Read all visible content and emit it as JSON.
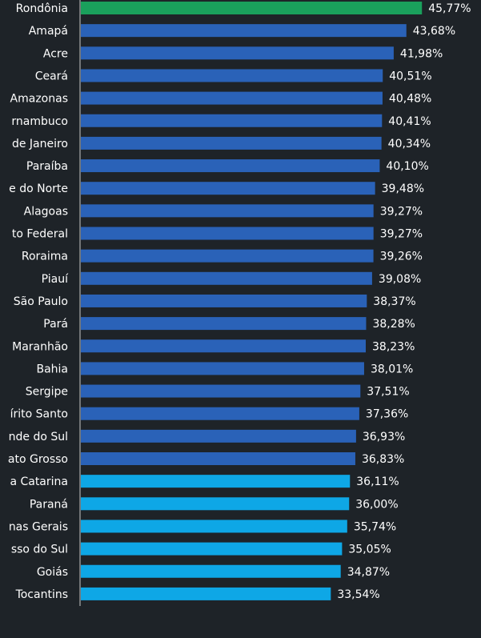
{
  "chart_data": {
    "type": "barh",
    "categories": [
      "Rondônia",
      "Amapá",
      "Acre",
      "Ceará",
      "Amazonas",
      "rnambuco",
      "de Janeiro",
      "Paraíba",
      "e do Norte",
      "Alagoas",
      "to Federal",
      "Roraima",
      "Piauí",
      "São Paulo",
      "Pará",
      "Maranhão",
      "Bahia",
      "Sergipe",
      "írito Santo",
      "nde do Sul",
      "ato Grosso",
      "a Catarina",
      "Paraná",
      "nas Gerais",
      "sso do Sul",
      "Goiás",
      "Tocantins"
    ],
    "values": [
      45.77,
      43.68,
      41.98,
      40.51,
      40.48,
      40.41,
      40.34,
      40.1,
      39.48,
      39.27,
      39.27,
      39.26,
      39.08,
      38.37,
      38.28,
      38.23,
      38.01,
      37.51,
      37.36,
      36.93,
      36.83,
      36.11,
      36.0,
      35.74,
      35.05,
      34.87,
      33.54
    ],
    "value_labels": [
      "45,77%",
      "43,68%",
      "41,98%",
      "40,51%",
      "40,48%",
      "40,41%",
      "40,34%",
      "40,10%",
      "39,48%",
      "39,27%",
      "39,27%",
      "39,26%",
      "39,08%",
      "38,37%",
      "38,28%",
      "38,23%",
      "38,01%",
      "37,51%",
      "37,36%",
      "36,93%",
      "36,83%",
      "36,11%",
      "36,00%",
      "35,74%",
      "35,05%",
      "34,87%",
      "33,54%"
    ],
    "colors": [
      "#1aa05c",
      "#2a62b8",
      "#2a62b8",
      "#2a62b8",
      "#2a62b8",
      "#2a62b8",
      "#2a62b8",
      "#2a62b8",
      "#2a62b8",
      "#2a62b8",
      "#2a62b8",
      "#2a62b8",
      "#2a62b8",
      "#2a62b8",
      "#2a62b8",
      "#2a62b8",
      "#2a62b8",
      "#2a62b8",
      "#2a62b8",
      "#2a62b8",
      "#2a62b8",
      "#0ea7e6",
      "#0ea7e6",
      "#0ea7e6",
      "#0ea7e6",
      "#0ea7e6",
      "#0ea7e6"
    ],
    "xlim": [
      0,
      53.8
    ]
  }
}
